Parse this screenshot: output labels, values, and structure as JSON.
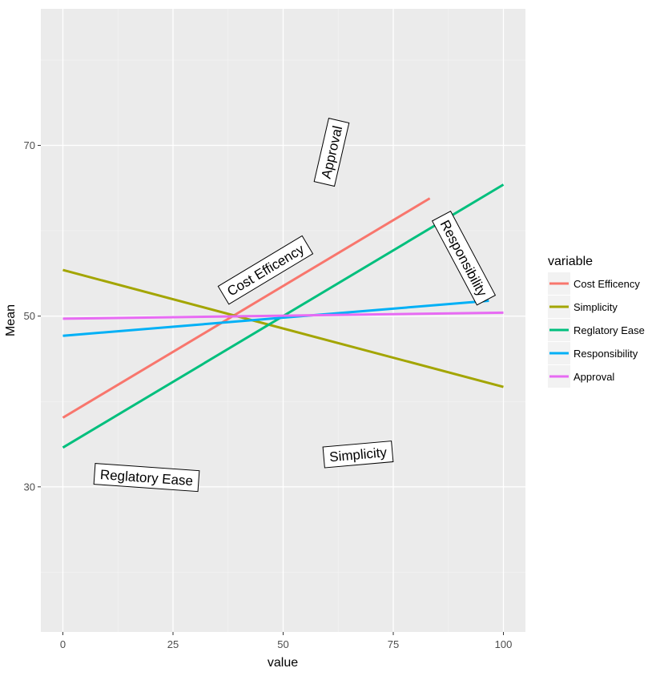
{
  "chart_data": {
    "type": "line",
    "title": "",
    "xlabel": "value",
    "ylabel": "Mean",
    "xlim": [
      -5,
      105
    ],
    "ylim": [
      13,
      86
    ],
    "x_ticks": [
      0,
      25,
      50,
      75,
      100
    ],
    "x_tick_labels": [
      "0",
      "25",
      "50",
      "75",
      "100"
    ],
    "x_minor_ticks": [
      12.5,
      37.5,
      62.5,
      87.5
    ],
    "y_ticks": [
      30,
      50,
      70
    ],
    "y_tick_labels": [
      "30",
      "50",
      "70"
    ],
    "y_minor_ticks": [
      20,
      40,
      60,
      80
    ],
    "grid": true,
    "legend": {
      "title": "variable",
      "position": "right"
    },
    "series": [
      {
        "name": "Cost Efficency",
        "color": "#F8766D",
        "x": [
          0,
          83.3
        ],
        "y": [
          38.1,
          63.8
        ]
      },
      {
        "name": "Simplicity",
        "color": "#A3A500",
        "x": [
          0,
          100
        ],
        "y": [
          55.4,
          41.7
        ]
      },
      {
        "name": "Reglatory Ease",
        "color": "#00BF7D",
        "x": [
          0,
          100
        ],
        "y": [
          34.6,
          65.4
        ]
      },
      {
        "name": "Responsibility",
        "color": "#00B0F6",
        "x": [
          0,
          96.7
        ],
        "y": [
          47.7,
          51.8
        ]
      },
      {
        "name": "Approval",
        "color": "#E76BF3",
        "x": [
          0,
          100
        ],
        "y": [
          49.7,
          50.4
        ]
      }
    ],
    "annotations": [
      {
        "text": "Approval",
        "x": 61,
        "y": 69.2,
        "angle": -77
      },
      {
        "text": "Cost Efficency",
        "x": 46,
        "y": 55.4,
        "angle": -31
      },
      {
        "text": "Responsibility",
        "x": 91,
        "y": 56.8,
        "angle": 62
      },
      {
        "text": "Simplicity",
        "x": 67,
        "y": 33.8,
        "angle": -5
      },
      {
        "text": "Reglatory Ease",
        "x": 19,
        "y": 31.1,
        "angle": 4
      }
    ]
  }
}
